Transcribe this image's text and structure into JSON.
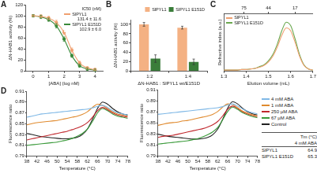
{
  "chart_data": [
    {
      "type": "line",
      "title": "A",
      "x": [
        0,
        0.5,
        1,
        1.5,
        2,
        2.5,
        3,
        3.5,
        4
      ],
      "x_label": "[ABA] (log nM)",
      "y_label": "ΔN-HAB1 activity (%)",
      "xlim": [
        -0.5,
        4.5
      ],
      "xticks": [
        0,
        1,
        2,
        3,
        4
      ],
      "ylim": [
        0,
        120
      ],
      "yticks": [
        0,
        20,
        40,
        60,
        80,
        100,
        120
      ],
      "grid": false,
      "marker": "circle",
      "legend": "top-right",
      "series": [
        {
          "name": "SlPYL1",
          "color": "#f0a070",
          "values": [
            100,
            99,
            96,
            88,
            70,
            38,
            15,
            6,
            3
          ],
          "errors": [
            2,
            3,
            3,
            4,
            4,
            4,
            3,
            2,
            2
          ]
        },
        {
          "name": "SlPYL1 E151D",
          "color": "#3a8a3a",
          "values": [
            100,
            98,
            93,
            82,
            58,
            28,
            10,
            4,
            2
          ],
          "errors": [
            2,
            3,
            3,
            4,
            4,
            3,
            3,
            2,
            2
          ]
        }
      ],
      "table": {
        "title": "IC50 (nM)",
        "rows": [
          "131.4 ± 11.6",
          "102.9 ± 6.0"
        ]
      }
    },
    {
      "type": "bar",
      "title": "B",
      "categories": [
        "1:2",
        "1:4"
      ],
      "x_label": "ΔN-HAB1 : SlPYL1 wt/E151D",
      "y_label": "ΔN-HAB1 activity (%)",
      "ylim": [
        0,
        110
      ],
      "yticks": [
        0,
        20,
        40,
        60,
        80,
        100
      ],
      "grid": false,
      "legend": "top",
      "series": [
        {
          "name": "SlPYL1",
          "color": "#f4b183",
          "values": [
            100,
            93
          ],
          "errors": [
            4,
            3
          ]
        },
        {
          "name": "SlPYL1 E151D",
          "color": "#3a7d3a",
          "values": [
            27,
            20
          ],
          "errors": [
            8,
            6
          ]
        }
      ]
    },
    {
      "type": "line",
      "title": "C",
      "x": [
        1.3,
        1.32,
        1.34,
        1.36,
        1.38,
        1.4,
        1.42,
        1.44,
        1.46,
        1.48,
        1.5,
        1.52,
        1.54,
        1.56,
        1.58,
        1.6,
        1.62,
        1.64,
        1.66,
        1.68,
        1.7
      ],
      "x_label": "Elution volume (mL)",
      "y_label": "Refractive index (a.u.)",
      "xlim": [
        1.3,
        1.7
      ],
      "xticks": [
        1.3,
        1.4,
        1.5,
        1.6,
        1.7
      ],
      "x2ticks": [
        {
          "value": 1.39,
          "label": "75"
        },
        {
          "value": 1.5,
          "label": "44"
        },
        {
          "value": 1.62,
          "label": "17"
        }
      ],
      "ylim": [
        0,
        1
      ],
      "tick_labels": "x",
      "grid": false,
      "marker": "none",
      "legend": "top-left",
      "series": [
        {
          "name": "SlPYL1",
          "color": "#f0a070",
          "values": [
            0.02,
            0.02,
            0.02,
            0.02,
            0.03,
            0.03,
            0.04,
            0.05,
            0.07,
            0.1,
            0.16,
            0.26,
            0.42,
            0.62,
            0.75,
            0.7,
            0.5,
            0.26,
            0.1,
            0.04,
            0.02
          ]
        },
        {
          "name": "SlPYL1 E151D",
          "color": "#6aa84f",
          "values": [
            0.02,
            0.02,
            0.02,
            0.02,
            0.03,
            0.03,
            0.04,
            0.05,
            0.08,
            0.11,
            0.18,
            0.29,
            0.47,
            0.7,
            0.85,
            0.79,
            0.56,
            0.29,
            0.11,
            0.04,
            0.02
          ]
        }
      ]
    },
    {
      "type": "line",
      "title": "D",
      "x": [
        38,
        40,
        42,
        44,
        46,
        48,
        50,
        52,
        54,
        56,
        58,
        60,
        62,
        64,
        66,
        68,
        70,
        72,
        74,
        76,
        78
      ],
      "x_label": "Temperature (°C)",
      "y_label": "Fluorescence ratio",
      "xlim": [
        38,
        78
      ],
      "xticks": [
        38,
        42,
        46,
        50,
        54,
        58,
        62,
        66,
        70,
        74,
        78
      ],
      "ylim": [
        0.79,
        0.91
      ],
      "yticks": [
        0.79,
        0.81,
        0.83,
        0.85,
        0.87,
        0.89,
        0.91
      ],
      "grid": false,
      "marker": "none",
      "series": [
        {
          "name": "4 mM ABA",
          "color": "#7fb8e6",
          "values": [
            0.862,
            0.864,
            0.866,
            0.868,
            0.869,
            0.87,
            0.871,
            0.872,
            0.873,
            0.874,
            0.875,
            0.876,
            0.877,
            0.879,
            0.882,
            0.884,
            0.88,
            0.874,
            0.87,
            0.868,
            0.866
          ]
        },
        {
          "name": "1 mM ABA",
          "color": "#e08a2e",
          "values": [
            0.848,
            0.85,
            0.852,
            0.853,
            0.854,
            0.855,
            0.856,
            0.858,
            0.86,
            0.862,
            0.864,
            0.867,
            0.872,
            0.88,
            0.886,
            0.884,
            0.878,
            0.872,
            0.868,
            0.866,
            0.864
          ]
        },
        {
          "name": "250 µM ABA",
          "color": "#c0282d",
          "values": [
            0.82,
            0.822,
            0.824,
            0.826,
            0.828,
            0.83,
            0.832,
            0.834,
            0.836,
            0.839,
            0.842,
            0.846,
            0.852,
            0.862,
            0.874,
            0.88,
            0.876,
            0.87,
            0.866,
            0.864,
            0.862
          ]
        },
        {
          "name": "67 µM ABA",
          "color": "#3a9a3a",
          "values": [
            0.81,
            0.811,
            0.812,
            0.813,
            0.814,
            0.815,
            0.816,
            0.818,
            0.82,
            0.823,
            0.827,
            0.832,
            0.84,
            0.854,
            0.87,
            0.878,
            0.874,
            0.868,
            0.864,
            0.862,
            0.86
          ]
        },
        {
          "name": "Control",
          "color": "#222222",
          "values": [
            0.832,
            0.83,
            0.828,
            0.826,
            0.825,
            0.824,
            0.823,
            0.822,
            0.822,
            0.823,
            0.825,
            0.83,
            0.84,
            0.858,
            0.878,
            0.89,
            0.886,
            0.878,
            0.872,
            0.868,
            0.866
          ]
        }
      ]
    },
    {
      "type": "line",
      "x": [
        38,
        40,
        42,
        44,
        46,
        48,
        50,
        52,
        54,
        56,
        58,
        60,
        62,
        64,
        66,
        68,
        70,
        72,
        74,
        76,
        78
      ],
      "x_label": "Temperature (°C)",
      "y_label": "Fluorescence ratio",
      "xlim": [
        38,
        78
      ],
      "xticks": [
        38,
        42,
        46,
        50,
        54,
        58,
        62,
        66,
        70,
        74,
        78
      ],
      "ylim": [
        0.79,
        0.91
      ],
      "yticks": [
        0.79,
        0.81,
        0.83,
        0.85,
        0.87,
        0.89,
        0.91
      ],
      "grid": false,
      "marker": "none",
      "legend": "right",
      "series": [
        {
          "name": "4 mM ABA",
          "color": "#7fb8e6",
          "values": [
            0.866,
            0.867,
            0.868,
            0.869,
            0.87,
            0.871,
            0.872,
            0.873,
            0.874,
            0.875,
            0.876,
            0.877,
            0.878,
            0.88,
            0.883,
            0.885,
            0.881,
            0.876,
            0.872,
            0.869,
            0.867
          ]
        },
        {
          "name": "1 mM ABA",
          "color": "#e08a2e",
          "values": [
            0.846,
            0.848,
            0.85,
            0.851,
            0.852,
            0.854,
            0.855,
            0.857,
            0.859,
            0.861,
            0.863,
            0.866,
            0.871,
            0.879,
            0.885,
            0.884,
            0.878,
            0.872,
            0.868,
            0.865,
            0.863
          ]
        },
        {
          "name": "250 µM ABA",
          "color": "#c0282d",
          "values": [
            0.824,
            0.826,
            0.827,
            0.828,
            0.83,
            0.832,
            0.834,
            0.836,
            0.838,
            0.84,
            0.843,
            0.847,
            0.853,
            0.863,
            0.875,
            0.881,
            0.877,
            0.871,
            0.867,
            0.864,
            0.862
          ]
        },
        {
          "name": "67 µM ABA",
          "color": "#3a9a3a",
          "values": [
            0.812,
            0.813,
            0.814,
            0.815,
            0.816,
            0.817,
            0.818,
            0.82,
            0.822,
            0.825,
            0.829,
            0.834,
            0.842,
            0.856,
            0.871,
            0.879,
            0.875,
            0.869,
            0.865,
            0.862,
            0.86
          ]
        },
        {
          "name": "Control",
          "color": "#222222",
          "values": [
            0.83,
            0.828,
            0.826,
            0.825,
            0.824,
            0.823,
            0.822,
            0.821,
            0.821,
            0.822,
            0.824,
            0.829,
            0.839,
            0.857,
            0.877,
            0.889,
            0.885,
            0.877,
            0.871,
            0.867,
            0.865
          ]
        }
      ],
      "table": {
        "title": "Tm (°C)",
        "subtitle": "4 mM ABA",
        "rows": [
          [
            "SlPYL1",
            "64.9"
          ],
          [
            "SlPYL1 E151D",
            "65.3"
          ]
        ]
      }
    }
  ]
}
